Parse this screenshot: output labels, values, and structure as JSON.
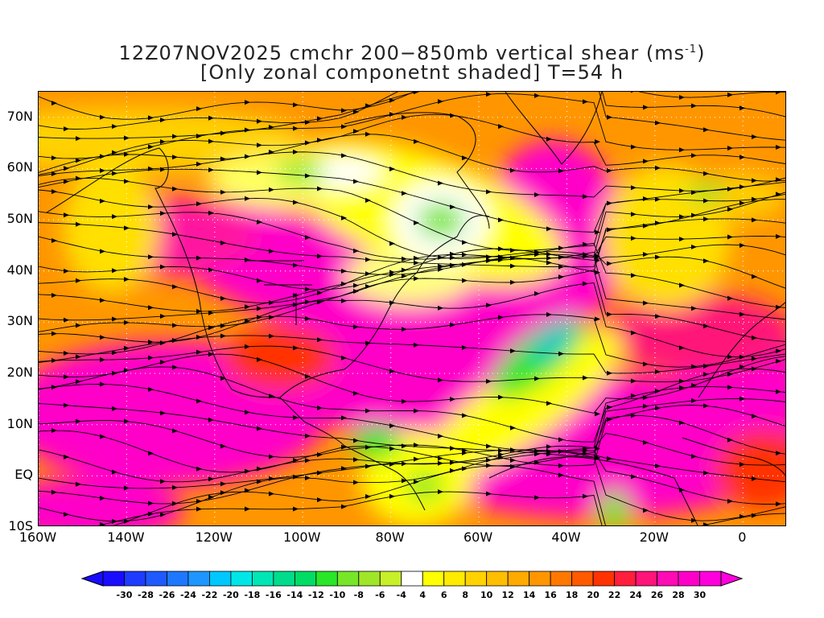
{
  "title": {
    "line1_prefix": "12Z07NOV2025 cmchr 200−850mb vertical shear (ms",
    "line1_sup": "-1",
    "line1_suffix": ")",
    "line2": "[Only zonal componetnt shaded] T=54 h"
  },
  "map": {
    "lon_range": [
      -160,
      10
    ],
    "lat_range": [
      -10,
      75
    ],
    "lat_ticks": [
      "70N",
      "60N",
      "50N",
      "40N",
      "30N",
      "20N",
      "10N",
      "EQ",
      "10S"
    ],
    "lon_ticks": [
      "160W",
      "140W",
      "120W",
      "100W",
      "80W",
      "60W",
      "40W",
      "20W",
      "0"
    ],
    "field": "zonal component of 200-850mb vertical shear",
    "overlay": "streamlines with arrows, coastlines, dotted graticule"
  },
  "colorbar": {
    "labels": [
      "-30",
      "-28",
      "-26",
      "-24",
      "-22",
      "-20",
      "-18",
      "-16",
      "-14",
      "-12",
      "-10",
      "-8",
      "-6",
      "-4",
      "4",
      "6",
      "8",
      "10",
      "12",
      "14",
      "16",
      "18",
      "20",
      "22",
      "24",
      "26",
      "28",
      "30"
    ],
    "colors": [
      "#1a0cff",
      "#1e3cff",
      "#1e5aff",
      "#1e78ff",
      "#1e96ff",
      "#00c8ff",
      "#00e6e6",
      "#00e6b4",
      "#00dc8c",
      "#00dc64",
      "#28e628",
      "#78e628",
      "#a0e628",
      "#c8f028",
      "#ffffff",
      "#ffff00",
      "#ffeb00",
      "#ffd200",
      "#ffbe00",
      "#ffaa00",
      "#ff9600",
      "#ff7800",
      "#ff5a00",
      "#ff3200",
      "#ff1e3c",
      "#ff1478",
      "#ff0ab4",
      "#ff00c8",
      "#ff00dc"
    ]
  }
}
